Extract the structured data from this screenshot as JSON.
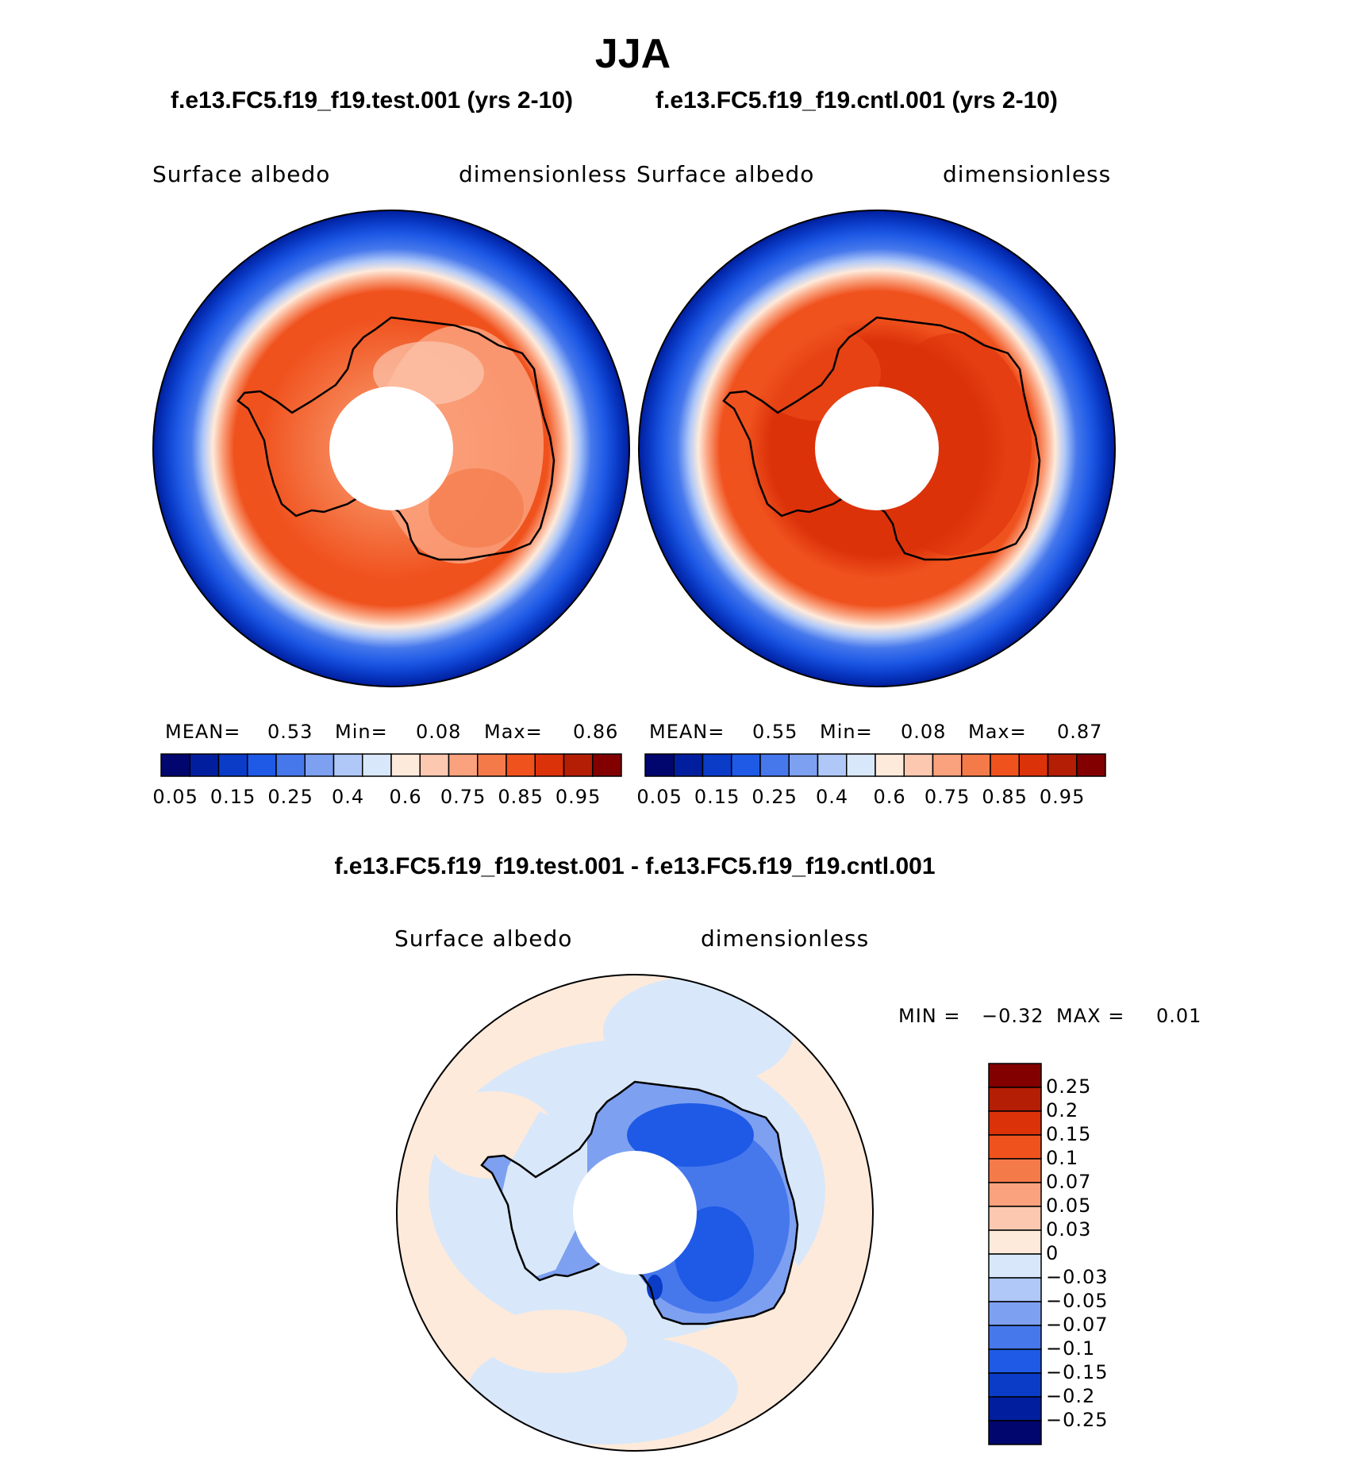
{
  "figure": {
    "season": "JJA",
    "diff_title": "f.e13.FC5.f19_f19.test.001 - f.e13.FC5.f19_f19.cntl.001"
  },
  "panels": [
    {
      "case_title": "f.e13.FC5.f19_f19.test.001 (yrs 2-10)",
      "variable": "Surface  albedo",
      "units": "dimensionless",
      "mean_label": "MEAN=",
      "mean_value": "0.53",
      "min_label": "Min=",
      "min_value": "0.08",
      "max_label": "Max=",
      "max_value": "0.86"
    },
    {
      "case_title": "f.e13.FC5.f19_f19.cntl.001 (yrs 2-10)",
      "variable": "Surface  albedo",
      "units": "dimensionless",
      "mean_label": "MEAN=",
      "mean_value": "0.55",
      "min_label": "Min=",
      "min_value": "0.08",
      "max_label": "Max=",
      "max_value": "0.87"
    }
  ],
  "diff_panel": {
    "variable": "Surface  albedo",
    "units": "dimensionless",
    "min_label": "MIN =",
    "min_value": "−0.32",
    "max_label": "MAX =",
    "max_value": "0.01"
  },
  "colorbar_main": {
    "colors": [
      "#00066e",
      "#001e9e",
      "#0a3cc8",
      "#1e5ae6",
      "#4678ec",
      "#7ea0f0",
      "#afc8f8",
      "#d8e8fa",
      "#feeadb",
      "#fcc8b0",
      "#faa27e",
      "#f57a4a",
      "#f0521e",
      "#dc320a",
      "#b41e04",
      "#820000"
    ],
    "tick_labels": [
      "0.05",
      "0.15",
      "0.25",
      "0.4",
      "0.6",
      "0.75",
      "0.85",
      "0.95"
    ]
  },
  "colorbar_diff": {
    "colors": [
      "#820000",
      "#b41e04",
      "#dc320a",
      "#f0521e",
      "#f57a4a",
      "#faa27e",
      "#fcc8b0",
      "#feeadb",
      "#d8e8fa",
      "#afc8f8",
      "#7ea0f0",
      "#4678ec",
      "#1e5ae6",
      "#0a3cc8",
      "#001e9e",
      "#00066e"
    ],
    "tick_labels": [
      "0.25",
      "0.2",
      "0.15",
      "0.1",
      "0.07",
      "0.05",
      "0.03",
      "0",
      "−0.03",
      "−0.05",
      "−0.07",
      "−0.1",
      "−0.15",
      "−0.2",
      "−0.25"
    ]
  }
}
